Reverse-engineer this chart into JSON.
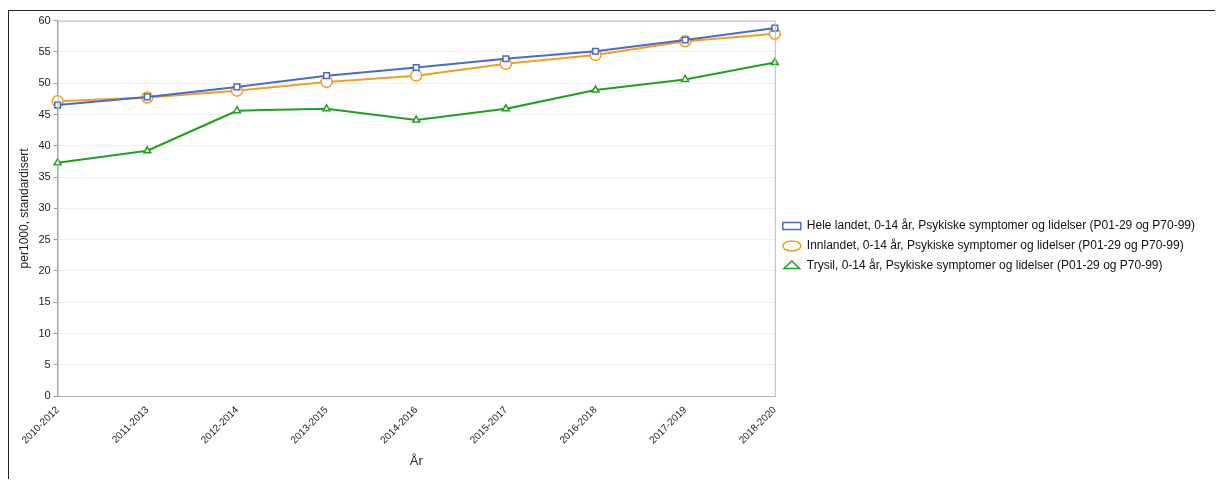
{
  "chart_data": {
    "type": "line",
    "xlabel": "År",
    "ylabel": "per1000, standardisert",
    "categories": [
      "2010-2012",
      "2011-2013",
      "2012-2014",
      "2013-2015",
      "2014-2016",
      "2015-2017",
      "2016-2018",
      "2017-2019",
      "2018-2020"
    ],
    "series": [
      {
        "name": "Hele landet, 0-14 år, Psykiske symptomer og lidelser (P01-29 og P70-99)",
        "color": "#4a6cc8",
        "marker": "square",
        "values": [
          46.5,
          47.8,
          49.4,
          51.2,
          52.5,
          53.9,
          55.1,
          56.9,
          58.8
        ]
      },
      {
        "name": "Innlandet, 0-14 år, Psykiske symptomer og lidelser (P01-29 og P70-99)",
        "color": "#f0a020",
        "marker": "circle",
        "values": [
          47.1,
          47.7,
          48.8,
          50.2,
          51.2,
          53.1,
          54.5,
          56.7,
          57.9
        ]
      },
      {
        "name": "Trysil, 0-14 år, Psykiske symptomer og lidelser (P01-29 og P70-99)",
        "color": "#1fa01f",
        "marker": "triangle",
        "values": [
          37.3,
          39.2,
          45.6,
          45.9,
          44.1,
          45.9,
          48.9,
          50.6,
          53.3
        ]
      }
    ],
    "ylim": [
      0,
      60
    ],
    "yticks": [
      0,
      5,
      10,
      15,
      20,
      25,
      30,
      35,
      40,
      45,
      50,
      55,
      60
    ],
    "grid": "y",
    "legend": "right",
    "line_style": "solid"
  }
}
